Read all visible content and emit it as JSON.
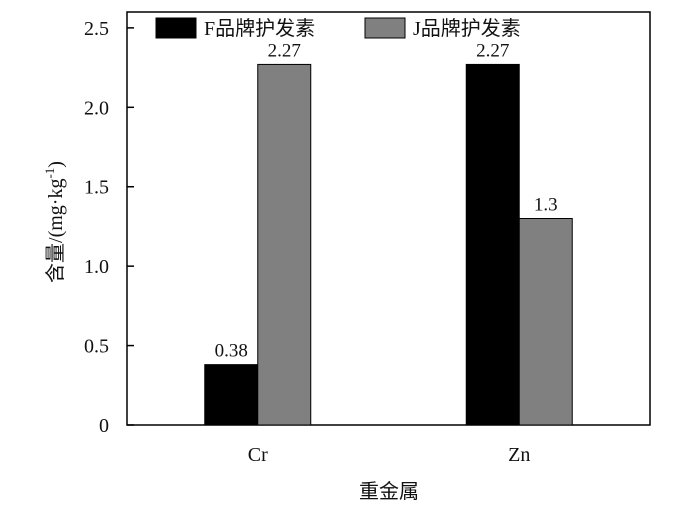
{
  "chart_data": {
    "type": "bar",
    "categories": [
      "Cr",
      "Zn"
    ],
    "series": [
      {
        "name": "F品牌护发素",
        "color": "#000000",
        "values": [
          0.38,
          2.27
        ],
        "labels": [
          "0.38",
          "2.27"
        ]
      },
      {
        "name": "J品牌护发素",
        "color": "#808080",
        "values": [
          2.27,
          1.3
        ],
        "labels": [
          "2.27",
          "1.3"
        ]
      }
    ],
    "xlabel": "重金属",
    "ylabel": "含量/(mg·kg",
    "ylabel_sup": "-1",
    "ylabel_suffix": ")",
    "ylim": [
      0,
      2.6
    ],
    "yticks": [
      0,
      0.5,
      1.0,
      1.5,
      2.0,
      2.5
    ],
    "ytick_labels": [
      "0",
      "0.5",
      "1.0",
      "1.5",
      "2.0",
      "2.5"
    ],
    "legend_position": "top",
    "grid": false
  }
}
